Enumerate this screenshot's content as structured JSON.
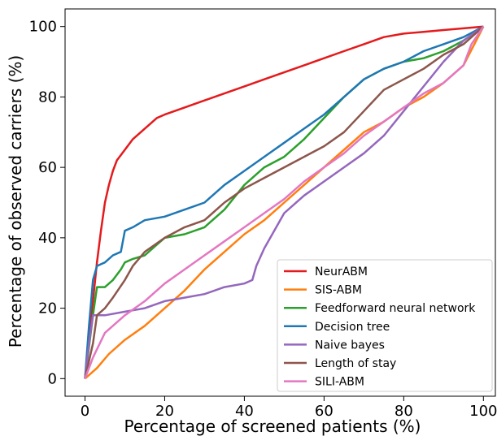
{
  "chart_data": {
    "type": "line",
    "xlabel": "Percentage of screened patients (%)",
    "ylabel": "Percentage of observed carriers (%)",
    "xlim": [
      -5,
      103
    ],
    "ylim": [
      -5,
      105
    ],
    "xticks": [
      0,
      20,
      40,
      60,
      80,
      100
    ],
    "yticks": [
      0,
      20,
      40,
      60,
      80,
      100
    ],
    "grid": false,
    "legend_position": "lower-right",
    "series": [
      {
        "name": "NeurABM",
        "color": "#e41a1c",
        "points": [
          [
            0,
            0
          ],
          [
            1,
            10
          ],
          [
            2,
            22
          ],
          [
            3,
            33
          ],
          [
            4,
            42
          ],
          [
            5,
            50
          ],
          [
            6,
            55
          ],
          [
            7,
            59
          ],
          [
            8,
            62
          ],
          [
            10,
            65
          ],
          [
            12,
            68
          ],
          [
            15,
            71
          ],
          [
            18,
            74
          ],
          [
            20,
            75
          ],
          [
            25,
            77
          ],
          [
            30,
            79
          ],
          [
            35,
            81
          ],
          [
            40,
            83
          ],
          [
            45,
            85
          ],
          [
            50,
            87
          ],
          [
            55,
            89
          ],
          [
            60,
            91
          ],
          [
            65,
            93
          ],
          [
            70,
            95
          ],
          [
            75,
            97
          ],
          [
            80,
            98
          ],
          [
            85,
            98.5
          ],
          [
            90,
            99
          ],
          [
            95,
            99.5
          ],
          [
            100,
            100
          ]
        ]
      },
      {
        "name": "SIS-ABM",
        "color": "#ff7f0e",
        "points": [
          [
            0,
            0
          ],
          [
            3,
            3
          ],
          [
            6,
            7
          ],
          [
            10,
            11
          ],
          [
            15,
            15
          ],
          [
            20,
            20
          ],
          [
            25,
            25
          ],
          [
            30,
            31
          ],
          [
            35,
            36
          ],
          [
            40,
            41
          ],
          [
            45,
            45
          ],
          [
            50,
            50
          ],
          [
            55,
            55
          ],
          [
            60,
            60
          ],
          [
            65,
            65
          ],
          [
            70,
            70
          ],
          [
            75,
            73
          ],
          [
            80,
            77
          ],
          [
            85,
            80
          ],
          [
            90,
            84
          ],
          [
            95,
            89
          ],
          [
            100,
            100
          ]
        ]
      },
      {
        "name": "Feedforward neural network",
        "color": "#2ca02c",
        "points": [
          [
            0,
            0
          ],
          [
            2,
            18
          ],
          [
            3,
            26
          ],
          [
            5,
            26
          ],
          [
            7,
            28
          ],
          [
            9,
            31
          ],
          [
            10,
            33
          ],
          [
            12,
            34
          ],
          [
            15,
            35
          ],
          [
            18,
            38
          ],
          [
            20,
            40
          ],
          [
            25,
            41
          ],
          [
            30,
            43
          ],
          [
            35,
            48
          ],
          [
            40,
            55
          ],
          [
            45,
            60
          ],
          [
            50,
            63
          ],
          [
            55,
            68
          ],
          [
            60,
            74
          ],
          [
            65,
            80
          ],
          [
            70,
            85
          ],
          [
            75,
            88
          ],
          [
            80,
            90
          ],
          [
            85,
            91
          ],
          [
            90,
            93
          ],
          [
            95,
            96
          ],
          [
            100,
            100
          ]
        ]
      },
      {
        "name": "Decision tree",
        "color": "#1f77b4",
        "points": [
          [
            0,
            0
          ],
          [
            1,
            15
          ],
          [
            2,
            28
          ],
          [
            3,
            32
          ],
          [
            5,
            33
          ],
          [
            7,
            35
          ],
          [
            9,
            36
          ],
          [
            10,
            42
          ],
          [
            12,
            43
          ],
          [
            15,
            45
          ],
          [
            20,
            46
          ],
          [
            25,
            48
          ],
          [
            30,
            50
          ],
          [
            35,
            55
          ],
          [
            40,
            59
          ],
          [
            45,
            63
          ],
          [
            50,
            67
          ],
          [
            55,
            71
          ],
          [
            60,
            75
          ],
          [
            65,
            80
          ],
          [
            70,
            85
          ],
          [
            75,
            88
          ],
          [
            80,
            90
          ],
          [
            85,
            93
          ],
          [
            90,
            95
          ],
          [
            95,
            97
          ],
          [
            100,
            100
          ]
        ]
      },
      {
        "name": "Naive bayes",
        "color": "#9467bd",
        "points": [
          [
            0,
            0
          ],
          [
            1,
            10
          ],
          [
            2,
            18
          ],
          [
            5,
            18
          ],
          [
            10,
            19
          ],
          [
            15,
            20
          ],
          [
            20,
            22
          ],
          [
            25,
            23
          ],
          [
            30,
            24
          ],
          [
            35,
            26
          ],
          [
            40,
            27
          ],
          [
            42,
            28
          ],
          [
            43,
            32
          ],
          [
            45,
            37
          ],
          [
            48,
            43
          ],
          [
            50,
            47
          ],
          [
            55,
            52
          ],
          [
            60,
            56
          ],
          [
            65,
            60
          ],
          [
            70,
            64
          ],
          [
            75,
            69
          ],
          [
            80,
            76
          ],
          [
            85,
            83
          ],
          [
            90,
            90
          ],
          [
            95,
            96
          ],
          [
            100,
            100
          ]
        ]
      },
      {
        "name": "Length of stay",
        "color": "#8c564b",
        "points": [
          [
            0,
            0
          ],
          [
            2,
            10
          ],
          [
            3,
            18
          ],
          [
            5,
            20
          ],
          [
            7,
            23
          ],
          [
            10,
            28
          ],
          [
            12,
            32
          ],
          [
            15,
            36
          ],
          [
            20,
            40
          ],
          [
            25,
            43
          ],
          [
            30,
            45
          ],
          [
            35,
            50
          ],
          [
            40,
            54
          ],
          [
            45,
            57
          ],
          [
            50,
            60
          ],
          [
            55,
            63
          ],
          [
            60,
            66
          ],
          [
            65,
            70
          ],
          [
            70,
            76
          ],
          [
            75,
            82
          ],
          [
            80,
            85
          ],
          [
            85,
            88
          ],
          [
            90,
            92
          ],
          [
            95,
            95
          ],
          [
            100,
            100
          ]
        ]
      },
      {
        "name": "SILI-ABM",
        "color": "#e377c2",
        "points": [
          [
            0,
            0
          ],
          [
            2,
            6
          ],
          [
            5,
            13
          ],
          [
            10,
            18
          ],
          [
            15,
            22
          ],
          [
            20,
            27
          ],
          [
            25,
            31
          ],
          [
            30,
            35
          ],
          [
            35,
            39
          ],
          [
            40,
            43
          ],
          [
            45,
            47
          ],
          [
            50,
            51
          ],
          [
            55,
            56
          ],
          [
            60,
            60
          ],
          [
            65,
            64
          ],
          [
            70,
            69
          ],
          [
            75,
            73
          ],
          [
            80,
            77
          ],
          [
            85,
            81
          ],
          [
            90,
            84
          ],
          [
            95,
            89
          ],
          [
            97,
            95
          ],
          [
            100,
            100
          ]
        ]
      }
    ]
  }
}
